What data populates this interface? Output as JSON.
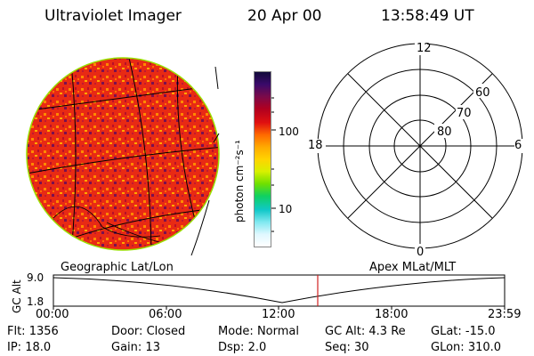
{
  "header": {
    "title": "Ultraviolet Imager",
    "date": "20 Apr 00",
    "time": "13:58:49 UT"
  },
  "colorbar": {
    "unit_label": "photon cm⁻²s⁻¹",
    "ticks": [
      "100",
      "10"
    ],
    "colors": [
      "#120a3a",
      "#3a0a6a",
      "#7a0a4a",
      "#b00020",
      "#e01010",
      "#ff6a00",
      "#ffaa00",
      "#ffd400",
      "#d8f000",
      "#70e000",
      "#10d060",
      "#10c8c8",
      "#80e8f0",
      "#e0f8ff",
      "#ffffff"
    ]
  },
  "polar": {
    "hour_labels": [
      "12",
      "18",
      "6",
      "0"
    ],
    "lat_labels": [
      "60",
      "70",
      "80"
    ]
  },
  "timeline": {
    "left_caption": "Geographic Lat/Lon",
    "right_caption": "Apex MLat/MLT",
    "axis_title": "GC Alt",
    "y_ticks": [
      "9.0",
      "1.8"
    ],
    "x_ticks": [
      "00:00",
      "06:00",
      "12:00",
      "18:00",
      "23:59"
    ],
    "marker_color": "#d02020"
  },
  "status": {
    "row1": [
      {
        "label": "Flt:",
        "value": "1356"
      },
      {
        "label": "Door:",
        "value": "Closed"
      },
      {
        "label": "Mode:",
        "value": "Normal"
      },
      {
        "label": "GC Alt:",
        "value": "4.3 Re"
      },
      {
        "label": "GLat:",
        "value": "-15.0"
      }
    ],
    "row2": [
      {
        "label": "IP:",
        "value": "18.0"
      },
      {
        "label": "Gain:",
        "value": "13"
      },
      {
        "label": "Dsp:",
        "value": "2.0"
      },
      {
        "label": "Seq:",
        "value": "30"
      },
      {
        "label": "GLon:",
        "value": "310.0"
      }
    ]
  }
}
